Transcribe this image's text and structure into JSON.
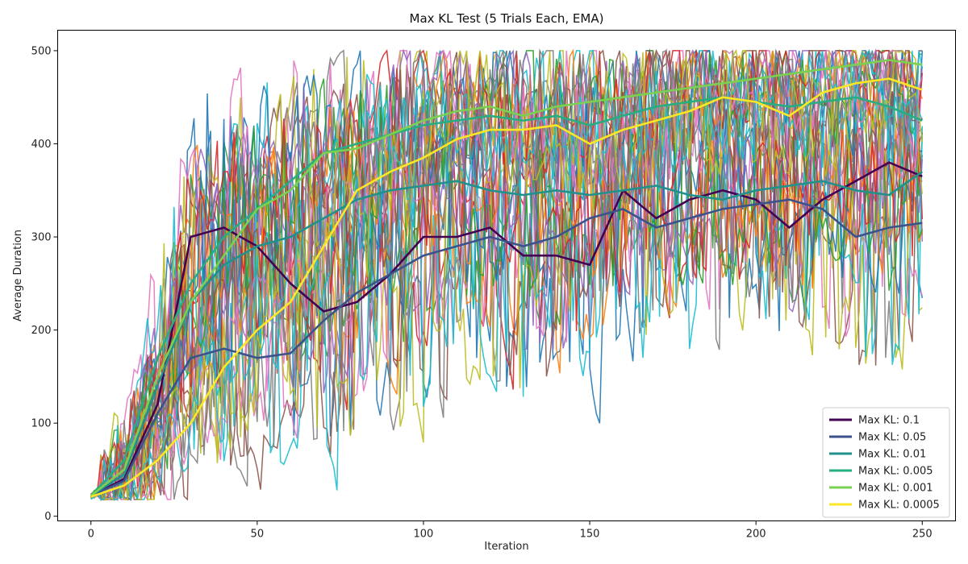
{
  "chart_data": {
    "type": "line",
    "title": "Max KL Test (5 Trials Each, EMA)",
    "xlabel": "Iteration",
    "ylabel": "Average Duration",
    "xlim": [
      -10,
      260
    ],
    "ylim": [
      -5,
      522
    ],
    "x_ticks": [
      0,
      50,
      100,
      150,
      200,
      250
    ],
    "y_ticks": [
      0,
      100,
      200,
      300,
      400,
      500
    ],
    "grid": false,
    "legend_position": "lower-right",
    "trial_colors": [
      "#1f77b4",
      "#ff7f0e",
      "#2ca02c",
      "#d62728",
      "#9467bd",
      "#8c564b",
      "#e377c2",
      "#7f7f7f",
      "#bcbd22",
      "#17becf"
    ],
    "series": [
      {
        "name": "Max KL: 0.1",
        "color": "#440154",
        "x": [
          0,
          10,
          20,
          30,
          40,
          50,
          60,
          70,
          80,
          90,
          100,
          110,
          120,
          130,
          140,
          150,
          160,
          170,
          180,
          190,
          200,
          210,
          220,
          230,
          240,
          250
        ],
        "values": [
          22,
          40,
          120,
          300,
          310,
          290,
          250,
          220,
          230,
          260,
          300,
          300,
          310,
          280,
          280,
          270,
          350,
          320,
          340,
          350,
          340,
          310,
          340,
          360,
          380,
          365
        ]
      },
      {
        "name": "Max KL: 0.05",
        "color": "#3b528b",
        "x": [
          0,
          10,
          20,
          30,
          40,
          50,
          60,
          70,
          80,
          90,
          100,
          110,
          120,
          130,
          140,
          150,
          160,
          170,
          180,
          190,
          200,
          210,
          220,
          230,
          240,
          250
        ],
        "values": [
          22,
          38,
          110,
          170,
          180,
          170,
          175,
          210,
          240,
          260,
          280,
          290,
          300,
          290,
          300,
          320,
          330,
          310,
          320,
          330,
          335,
          340,
          330,
          300,
          310,
          315
        ]
      },
      {
        "name": "Max KL: 0.01",
        "color": "#21918c",
        "x": [
          0,
          10,
          20,
          30,
          40,
          50,
          60,
          70,
          80,
          90,
          100,
          110,
          120,
          130,
          140,
          150,
          160,
          170,
          180,
          190,
          200,
          210,
          220,
          230,
          240,
          250
        ],
        "values": [
          22,
          45,
          140,
          230,
          270,
          290,
          300,
          320,
          340,
          350,
          355,
          360,
          350,
          345,
          350,
          345,
          350,
          355,
          345,
          340,
          350,
          355,
          360,
          350,
          345,
          370
        ]
      },
      {
        "name": "Max KL: 0.005",
        "color": "#27ad81",
        "x": [
          0,
          10,
          20,
          30,
          40,
          50,
          60,
          70,
          80,
          90,
          100,
          110,
          120,
          130,
          140,
          150,
          160,
          170,
          180,
          190,
          200,
          210,
          220,
          230,
          240,
          250
        ],
        "values": [
          22,
          60,
          170,
          250,
          300,
          330,
          360,
          390,
          400,
          410,
          420,
          425,
          430,
          425,
          430,
          420,
          430,
          440,
          445,
          450,
          445,
          440,
          445,
          450,
          440,
          425
        ]
      },
      {
        "name": "Max KL: 0.001",
        "color": "#7ad151",
        "x": [
          0,
          10,
          20,
          30,
          40,
          50,
          60,
          70,
          80,
          90,
          100,
          110,
          120,
          130,
          140,
          150,
          160,
          170,
          180,
          190,
          200,
          210,
          220,
          230,
          240,
          250
        ],
        "values": [
          22,
          50,
          150,
          230,
          280,
          330,
          350,
          390,
          395,
          410,
          425,
          435,
          440,
          430,
          440,
          445,
          450,
          455,
          460,
          465,
          470,
          475,
          480,
          485,
          490,
          485
        ]
      },
      {
        "name": "Max KL: 0.0005",
        "color": "#fde725",
        "x": [
          0,
          10,
          20,
          30,
          40,
          50,
          60,
          70,
          80,
          90,
          100,
          110,
          120,
          130,
          140,
          150,
          160,
          170,
          180,
          190,
          200,
          210,
          220,
          230,
          240,
          250
        ],
        "values": [
          21,
          33,
          60,
          100,
          160,
          200,
          230,
          290,
          350,
          370,
          385,
          405,
          415,
          415,
          420,
          400,
          415,
          425,
          435,
          450,
          445,
          430,
          455,
          465,
          470,
          458
        ]
      }
    ]
  }
}
